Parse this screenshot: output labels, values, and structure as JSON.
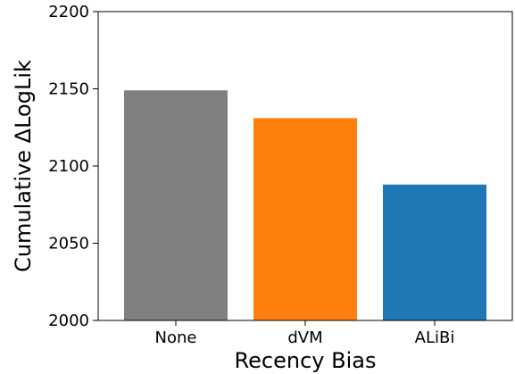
{
  "chart_data": {
    "type": "bar",
    "title": "",
    "xlabel": "Recency Bias",
    "ylabel": "Cumulative ΔLogLik",
    "categories": [
      "None",
      "dVM",
      "ALiBi"
    ],
    "values": [
      2149,
      2131,
      2088
    ],
    "colors": [
      "#808080",
      "#ff7f0e",
      "#1f77b4"
    ],
    "ylim": [
      2000,
      2200
    ],
    "yticks": [
      2000,
      2050,
      2100,
      2150,
      2200
    ],
    "grid": false,
    "legend": "none"
  }
}
